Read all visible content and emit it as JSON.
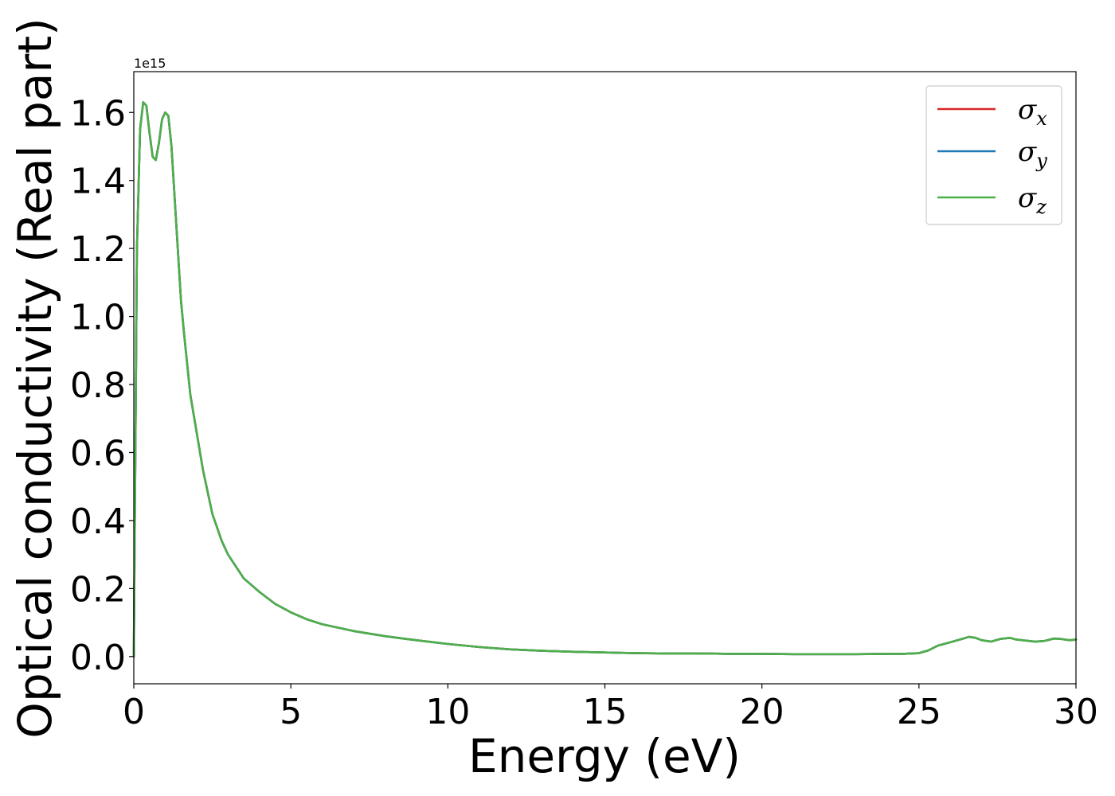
{
  "chart_data": {
    "type": "line",
    "xlabel": "Energy (eV)",
    "ylabel": "Optical conductivity (Real part)",
    "y_offset_label": "1e15",
    "xlim": [
      0,
      30
    ],
    "ylim": [
      -0.08,
      1.72
    ],
    "xticks": [
      0,
      5,
      10,
      15,
      20,
      25,
      30
    ],
    "xtick_labels": [
      "0",
      "5",
      "10",
      "15",
      "20",
      "25",
      "30"
    ],
    "yticks": [
      0.0,
      0.2,
      0.4,
      0.6,
      0.8,
      1.0,
      1.2,
      1.4,
      1.6
    ],
    "ytick_labels": [
      "0.0",
      "0.2",
      "0.4",
      "0.6",
      "0.8",
      "1.0",
      "1.2",
      "1.4",
      "1.6"
    ],
    "grid": false,
    "legend_position": "top-right",
    "x": [
      0,
      0.05,
      0.1,
      0.2,
      0.3,
      0.4,
      0.5,
      0.6,
      0.7,
      0.8,
      0.9,
      1.0,
      1.1,
      1.2,
      1.3,
      1.4,
      1.5,
      1.6,
      1.8,
      2.0,
      2.2,
      2.5,
      2.8,
      3.0,
      3.5,
      4.0,
      4.5,
      5.0,
      5.5,
      6.0,
      6.5,
      7.0,
      8.0,
      9.0,
      10.0,
      11.0,
      12.0,
      13.0,
      14.0,
      15.0,
      16.0,
      17.0,
      18.0,
      19.0,
      20.0,
      21.0,
      22.0,
      23.0,
      24.0,
      24.5,
      25.0,
      25.3,
      25.6,
      26.0,
      26.3,
      26.6,
      26.8,
      27.0,
      27.3,
      27.6,
      27.9,
      28.1,
      28.4,
      28.7,
      29.0,
      29.3,
      29.5,
      29.8,
      30.0
    ],
    "series": [
      {
        "name": "σx",
        "label_main": "σ",
        "label_sub": "x",
        "color": "#d62728",
        "values": [
          0.0,
          0.6,
          1.2,
          1.55,
          1.63,
          1.62,
          1.54,
          1.47,
          1.46,
          1.51,
          1.58,
          1.6,
          1.59,
          1.5,
          1.35,
          1.2,
          1.05,
          0.95,
          0.77,
          0.66,
          0.55,
          0.42,
          0.34,
          0.3,
          0.23,
          0.19,
          0.155,
          0.13,
          0.11,
          0.095,
          0.085,
          0.075,
          0.06,
          0.048,
          0.037,
          0.028,
          0.021,
          0.017,
          0.014,
          0.012,
          0.01,
          0.009,
          0.009,
          0.008,
          0.008,
          0.007,
          0.007,
          0.007,
          0.008,
          0.008,
          0.01,
          0.018,
          0.032,
          0.042,
          0.05,
          0.058,
          0.055,
          0.048,
          0.044,
          0.052,
          0.055,
          0.05,
          0.047,
          0.044,
          0.046,
          0.053,
          0.052,
          0.048,
          0.05
        ]
      },
      {
        "name": "σy",
        "label_main": "σ",
        "label_sub": "y",
        "color": "#1f77b4",
        "values": [
          0.0,
          0.6,
          1.2,
          1.55,
          1.63,
          1.62,
          1.54,
          1.47,
          1.46,
          1.51,
          1.58,
          1.6,
          1.59,
          1.5,
          1.35,
          1.2,
          1.05,
          0.95,
          0.77,
          0.66,
          0.55,
          0.42,
          0.34,
          0.3,
          0.23,
          0.19,
          0.155,
          0.13,
          0.11,
          0.095,
          0.085,
          0.075,
          0.06,
          0.048,
          0.037,
          0.028,
          0.021,
          0.017,
          0.014,
          0.012,
          0.01,
          0.009,
          0.009,
          0.008,
          0.008,
          0.007,
          0.007,
          0.007,
          0.008,
          0.008,
          0.01,
          0.018,
          0.032,
          0.042,
          0.05,
          0.058,
          0.055,
          0.048,
          0.044,
          0.052,
          0.055,
          0.05,
          0.047,
          0.044,
          0.046,
          0.053,
          0.052,
          0.048,
          0.05
        ]
      },
      {
        "name": "σz",
        "label_main": "σ",
        "label_sub": "z",
        "color": "#4daf4a",
        "values": [
          0.0,
          0.6,
          1.2,
          1.55,
          1.63,
          1.62,
          1.54,
          1.47,
          1.46,
          1.51,
          1.58,
          1.6,
          1.59,
          1.5,
          1.35,
          1.2,
          1.05,
          0.95,
          0.77,
          0.66,
          0.55,
          0.42,
          0.34,
          0.3,
          0.23,
          0.19,
          0.155,
          0.13,
          0.11,
          0.095,
          0.085,
          0.075,
          0.06,
          0.048,
          0.037,
          0.028,
          0.021,
          0.017,
          0.014,
          0.012,
          0.01,
          0.009,
          0.009,
          0.008,
          0.008,
          0.007,
          0.007,
          0.007,
          0.008,
          0.008,
          0.01,
          0.018,
          0.032,
          0.042,
          0.05,
          0.058,
          0.055,
          0.048,
          0.044,
          0.052,
          0.055,
          0.05,
          0.047,
          0.044,
          0.046,
          0.053,
          0.052,
          0.048,
          0.05
        ]
      }
    ]
  }
}
